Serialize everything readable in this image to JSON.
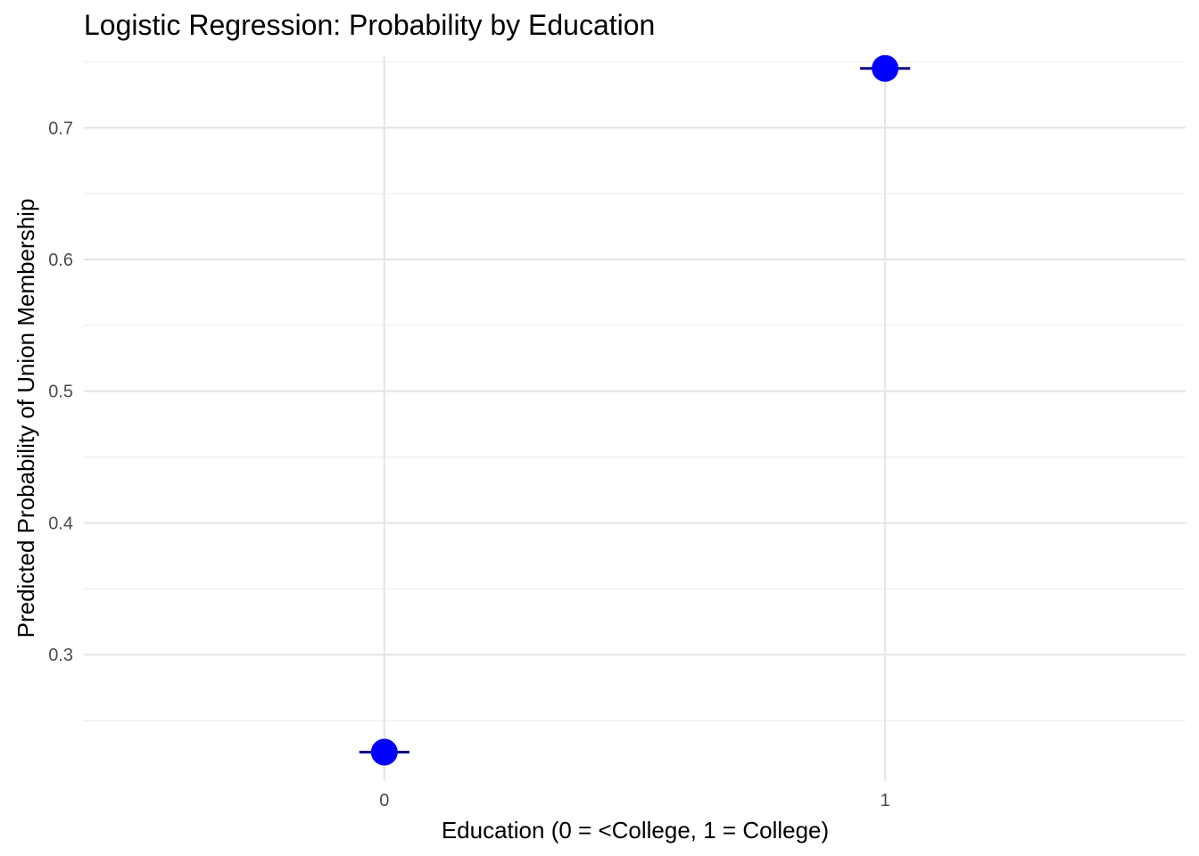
{
  "chart_data": {
    "type": "scatter",
    "title": "Logistic Regression: Probability by Education",
    "xlabel": "Education (0 = <College, 1 = College)",
    "ylabel": "Predicted Probability of Union Membership",
    "x_ticks": [
      "0",
      "1"
    ],
    "y_ticks": [
      "0.3",
      "0.4",
      "0.5",
      "0.6",
      "0.7"
    ],
    "xlim": [
      -0.6,
      1.6
    ],
    "ylim": [
      0.204,
      0.755
    ],
    "grid": true,
    "points": [
      {
        "x": 0,
        "y": 0.226
      },
      {
        "x": 1,
        "y": 0.745
      }
    ],
    "point_color": "#0000ff",
    "errorbar_color": "#00008b"
  }
}
